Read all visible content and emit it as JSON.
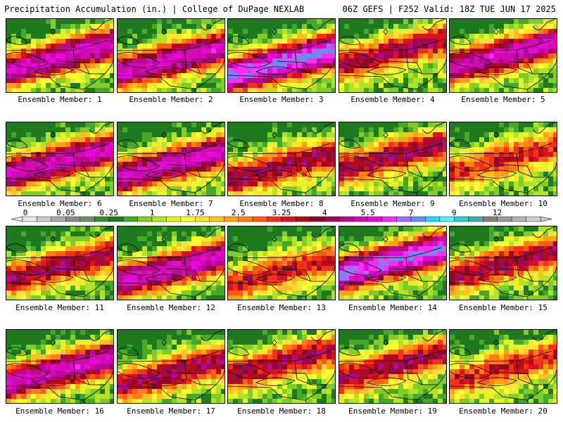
{
  "header": {
    "title_left": "Precipitation Accumulation (in.) | College of DuPage NEXLAB",
    "title_right": "06Z GEFS | F252 Valid: 18Z TUE JUN 17 2025"
  },
  "member_label_prefix": "Ensemble Member: ",
  "members": [
    {
      "id": 1,
      "label": "Ensemble Member: 1",
      "peak_in": 5.5
    },
    {
      "id": 2,
      "label": "Ensemble Member: 2",
      "peak_in": 5.5
    },
    {
      "id": 3,
      "label": "Ensemble Member: 3",
      "peak_in": 7
    },
    {
      "id": 4,
      "label": "Ensemble Member: 4",
      "peak_in": 4
    },
    {
      "id": 5,
      "label": "Ensemble Member: 5",
      "peak_in": 5.5
    },
    {
      "id": 6,
      "label": "Ensemble Member: 6",
      "peak_in": 5.5
    },
    {
      "id": 7,
      "label": "Ensemble Member: 7",
      "peak_in": 5.5
    },
    {
      "id": 8,
      "label": "Ensemble Member: 8",
      "peak_in": 4
    },
    {
      "id": 9,
      "label": "Ensemble Member: 9",
      "peak_in": 4
    },
    {
      "id": 10,
      "label": "Ensemble Member: 10",
      "peak_in": 3.25
    },
    {
      "id": 11,
      "label": "Ensemble Member: 11",
      "peak_in": 4
    },
    {
      "id": 12,
      "label": "Ensemble Member: 12",
      "peak_in": 5.5
    },
    {
      "id": 13,
      "label": "Ensemble Member: 13",
      "peak_in": 3.25
    },
    {
      "id": 14,
      "label": "Ensemble Member: 14",
      "peak_in": 7
    },
    {
      "id": 15,
      "label": "Ensemble Member: 15",
      "peak_in": 4
    },
    {
      "id": 16,
      "label": "Ensemble Member: 16",
      "peak_in": 5.5
    },
    {
      "id": 17,
      "label": "Ensemble Member: 17",
      "peak_in": 4
    },
    {
      "id": 18,
      "label": "Ensemble Member: 18",
      "peak_in": 4
    },
    {
      "id": 19,
      "label": "Ensemble Member: 19",
      "peak_in": 4
    },
    {
      "id": 20,
      "label": "Ensemble Member: 20",
      "peak_in": 3.25
    }
  ],
  "colorbar": {
    "unit": "in.",
    "labels": [
      "0",
      "0.05",
      "0.25",
      "1",
      "1.75",
      "2.5",
      "3.25",
      "4",
      "5.5",
      "7",
      "9",
      "12"
    ],
    "colors": [
      "#e6e6e6",
      "#c8c8c8",
      "#a8a8a8",
      "#8a8a8a",
      "#6a8f6a",
      "#2f8f2f",
      "#1f7a1f",
      "#45a82a",
      "#7fcc2a",
      "#b3e22a",
      "#e6f22a",
      "#ffff33",
      "#ffe033",
      "#ffc026",
      "#ffa01a",
      "#ff7f14",
      "#ff5a14",
      "#f03219",
      "#d8121e",
      "#b40a1e",
      "#8c0a28",
      "#9a0a5a",
      "#b40a8c",
      "#d20ab4",
      "#e60ad8",
      "#f032f0",
      "#a070f0",
      "#6a8cf0",
      "#2ad2ff",
      "#5af0f0",
      "#3cc8c8",
      "#46aaaa",
      "#808080",
      "#9a9a9a",
      "#b4b4b4",
      "#cccccc"
    ]
  }
}
